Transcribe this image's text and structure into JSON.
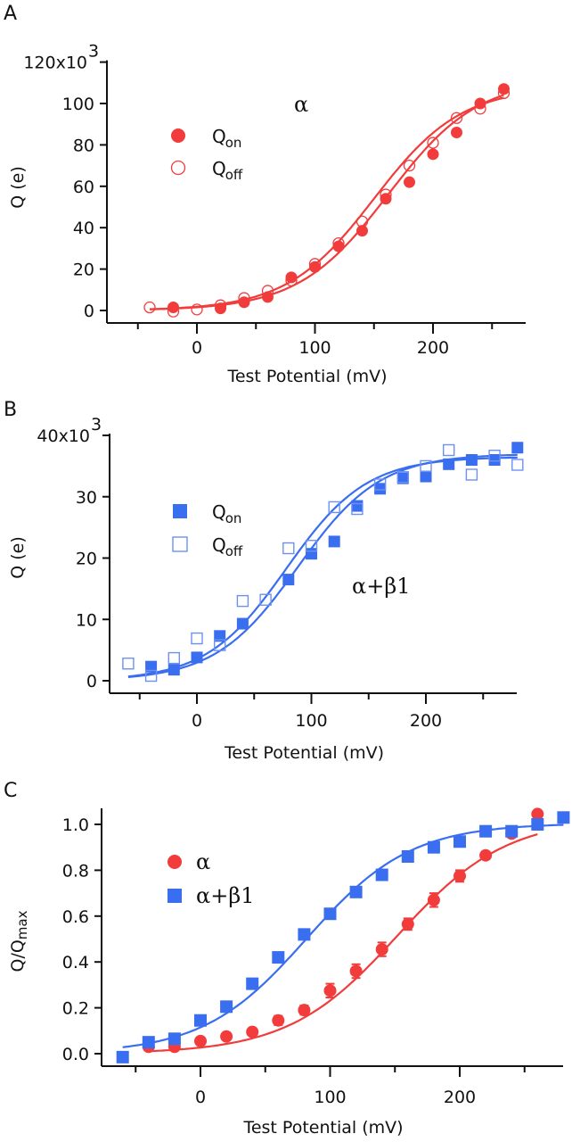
{
  "chart_data": [
    {
      "panel": "A",
      "type": "scatter",
      "annotation": "α",
      "xlabel": "Test Potential (mV)",
      "ylabel": "Q (e)",
      "xlim": [
        -55,
        270
      ],
      "ylim": [
        -4,
        120
      ],
      "xticks": [
        0,
        100,
        200
      ],
      "yticks": [
        0,
        20,
        40,
        60,
        80,
        100,
        120
      ],
      "ytick_labels": [
        "0",
        "20",
        "40",
        "60",
        "80",
        "100",
        "120x10³"
      ],
      "color": "#f23c3c",
      "legend_position": "upper-left",
      "series": [
        {
          "name": "Qon",
          "marker": "filled-circle",
          "x": [
            -20,
            20,
            40,
            60,
            80,
            100,
            120,
            140,
            160,
            180,
            200,
            220,
            240,
            260
          ],
          "y": [
            1.5,
            1,
            4,
            6.5,
            16,
            21,
            31,
            38.5,
            54,
            62,
            75.5,
            86,
            100,
            107
          ],
          "fit": {
            "qmax": 112,
            "v_half": 162,
            "k": 38,
            "offset": 0,
            "from": -40,
            "to": 260
          }
        },
        {
          "name": "Qoff",
          "marker": "open-circle",
          "x": [
            -40,
            -20,
            0,
            20,
            40,
            60,
            80,
            100,
            120,
            140,
            160,
            180,
            200,
            220,
            240,
            260
          ],
          "y": [
            1.5,
            -0.5,
            0.5,
            2.5,
            6,
            9.5,
            14.5,
            22.5,
            32.5,
            43,
            56,
            70,
            81,
            93,
            97.5,
            105
          ],
          "fit": {
            "qmax": 108,
            "v_half": 150,
            "k": 37,
            "offset": 0,
            "from": -40,
            "to": 260
          }
        }
      ]
    },
    {
      "panel": "B",
      "type": "scatter",
      "annotation": "α+β1",
      "xlabel": "Test Potential (mV)",
      "ylabel": "Q (e)",
      "xlim": [
        -78,
        280
      ],
      "ylim": [
        -1.2,
        40
      ],
      "xticks": [
        0,
        100,
        200
      ],
      "yticks": [
        0,
        10,
        20,
        30,
        40
      ],
      "ytick_labels": [
        "0",
        "10",
        "20",
        "30",
        "40x10³"
      ],
      "color": "#3a6ef0",
      "legend_position": "upper-left",
      "series": [
        {
          "name": "Qon",
          "marker": "filled-square",
          "x": [
            -40,
            -20,
            0,
            20,
            40,
            80,
            100,
            120,
            140,
            160,
            180,
            200,
            220,
            240,
            260,
            280
          ],
          "y": [
            2.3,
            1.8,
            3.8,
            7.3,
            9.3,
            16.5,
            20.7,
            22.7,
            28.5,
            31.3,
            33,
            33.3,
            35.3,
            36,
            36,
            38
          ],
          "fit": {
            "qmax": 37,
            "v_half": 88,
            "k": 36,
            "offset": 0,
            "from": -60,
            "to": 280
          }
        },
        {
          "name": "Qoff",
          "marker": "open-square",
          "x": [
            -60,
            -40,
            -20,
            0,
            20,
            40,
            60,
            80,
            100,
            120,
            140,
            160,
            180,
            200,
            220,
            240,
            260,
            280
          ],
          "y": [
            2.8,
            0.8,
            3.7,
            6.9,
            5.8,
            13,
            13.2,
            21.6,
            22,
            28.3,
            28,
            32,
            33.2,
            35,
            37.6,
            33.6,
            36.7,
            35.2
          ],
          "fit": {
            "qmax": 36.5,
            "v_half": 78,
            "k": 35,
            "offset": 0,
            "from": -60,
            "to": 280
          }
        }
      ]
    },
    {
      "panel": "C",
      "type": "scatter",
      "xlabel": "Test Potential (mV)",
      "ylabel": "Q/Qmax",
      "xlim": [
        -70,
        280
      ],
      "ylim": [
        -0.05,
        1.07
      ],
      "xticks": [
        0,
        100,
        200
      ],
      "yticks": [
        0.0,
        0.2,
        0.4,
        0.6,
        0.8,
        1.0
      ],
      "ytick_labels": [
        "0.0",
        "0.2",
        "0.4",
        "0.6",
        "0.8",
        "1.0"
      ],
      "legend_position": "upper-left",
      "series": [
        {
          "name": "α",
          "marker": "filled-circle",
          "color": "#f23c3c",
          "error_bars": true,
          "x": [
            -40,
            -20,
            0,
            20,
            40,
            60,
            80,
            100,
            120,
            140,
            160,
            180,
            200,
            220,
            240,
            260
          ],
          "y": [
            0.03,
            0.03,
            0.055,
            0.075,
            0.095,
            0.145,
            0.19,
            0.275,
            0.36,
            0.455,
            0.565,
            0.67,
            0.775,
            0.865,
            0.96,
            1.045
          ],
          "err": [
            0.01,
            0.01,
            0.015,
            0.015,
            0.015,
            0.02,
            0.02,
            0.03,
            0.03,
            0.03,
            0.025,
            0.03,
            0.025,
            0.015,
            0.015,
            0.015
          ],
          "fit": {
            "qmax": 1.03,
            "v_half": 152,
            "k": 42,
            "offset": 0,
            "from": -40,
            "to": 260
          }
        },
        {
          "name": "α+β1",
          "marker": "filled-square",
          "color": "#3a6ef0",
          "x": [
            -60,
            -40,
            -20,
            0,
            20,
            40,
            60,
            80,
            100,
            120,
            140,
            160,
            180,
            200,
            220,
            240,
            260,
            280
          ],
          "y": [
            -0.015,
            0.05,
            0.065,
            0.145,
            0.205,
            0.305,
            0.42,
            0.52,
            0.61,
            0.705,
            0.78,
            0.86,
            0.9,
            0.925,
            0.97,
            0.97,
            1.0,
            1.03
          ],
          "fit": {
            "qmax": 1.005,
            "v_half": 82,
            "k": 40,
            "offset": 0,
            "from": -60,
            "to": 280
          }
        }
      ]
    }
  ],
  "panel_labels": [
    "A",
    "B",
    "C"
  ],
  "legends": {
    "A": [
      {
        "main": "Q",
        "sub": "on"
      },
      {
        "main": "Q",
        "sub": "off"
      }
    ],
    "B": [
      {
        "main": "Q",
        "sub": "on"
      },
      {
        "main": "Q",
        "sub": "off"
      }
    ],
    "C": [
      {
        "main": "α",
        "sub": ""
      },
      {
        "main": "α+β1",
        "sub": ""
      }
    ]
  }
}
